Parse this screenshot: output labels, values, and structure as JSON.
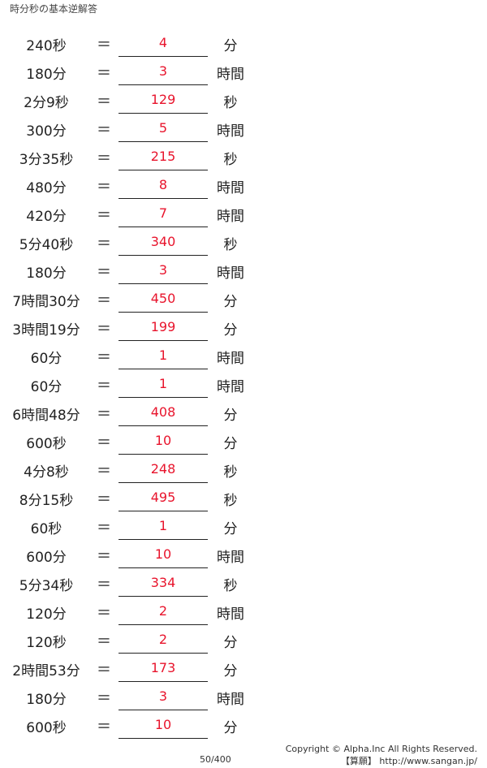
{
  "title": "時分秒の基本逆解答",
  "equals": "＝",
  "rows": [
    {
      "q": "240秒",
      "a": "4",
      "u": "分"
    },
    {
      "q": "180分",
      "a": "3",
      "u": "時間"
    },
    {
      "q": "2分9秒",
      "a": "129",
      "u": "秒"
    },
    {
      "q": "300分",
      "a": "5",
      "u": "時間"
    },
    {
      "q": "3分35秒",
      "a": "215",
      "u": "秒"
    },
    {
      "q": "480分",
      "a": "8",
      "u": "時間"
    },
    {
      "q": "420分",
      "a": "7",
      "u": "時間"
    },
    {
      "q": "5分40秒",
      "a": "340",
      "u": "秒"
    },
    {
      "q": "180分",
      "a": "3",
      "u": "時間"
    },
    {
      "q": "7時間30分",
      "a": "450",
      "u": "分"
    },
    {
      "q": "3時間19分",
      "a": "199",
      "u": "分"
    },
    {
      "q": "60分",
      "a": "1",
      "u": "時間"
    },
    {
      "q": "60分",
      "a": "1",
      "u": "時間"
    },
    {
      "q": "6時間48分",
      "a": "408",
      "u": "分"
    },
    {
      "q": "600秒",
      "a": "10",
      "u": "分"
    },
    {
      "q": "4分8秒",
      "a": "248",
      "u": "秒"
    },
    {
      "q": "8分15秒",
      "a": "495",
      "u": "秒"
    },
    {
      "q": "60秒",
      "a": "1",
      "u": "分"
    },
    {
      "q": "600分",
      "a": "10",
      "u": "時間"
    },
    {
      "q": "5分34秒",
      "a": "334",
      "u": "秒"
    },
    {
      "q": "120分",
      "a": "2",
      "u": "時間"
    },
    {
      "q": "120秒",
      "a": "2",
      "u": "分"
    },
    {
      "q": "2時間53分",
      "a": "173",
      "u": "分"
    },
    {
      "q": "180分",
      "a": "3",
      "u": "時間"
    },
    {
      "q": "600秒",
      "a": "10",
      "u": "分"
    }
  ],
  "footer": {
    "page": "50/400",
    "copyright": "Copyright © Alpha.Inc All Rights Reserved.",
    "site": "【算願】 http://www.sangan.jp/"
  },
  "colors": {
    "answer": "#e8142c"
  }
}
